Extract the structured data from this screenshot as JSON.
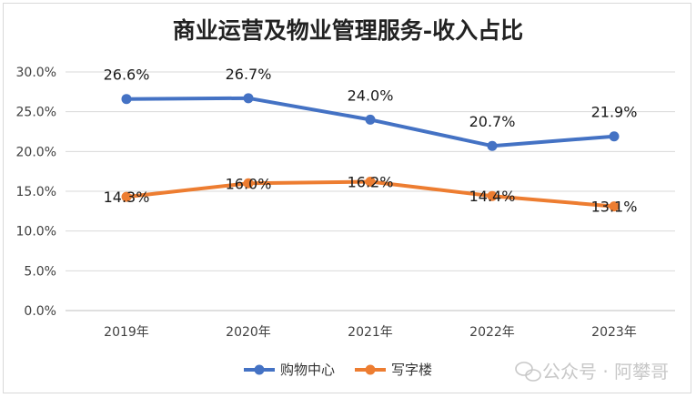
{
  "chart_data": {
    "type": "line",
    "title": "商业运营及物业管理服务-收入占比",
    "categories": [
      "2019年",
      "2020年",
      "2021年",
      "2022年",
      "2023年"
    ],
    "series": [
      {
        "name": "购物中心",
        "values": [
          26.6,
          26.7,
          24.0,
          20.7,
          21.9
        ],
        "labels": [
          "26.6%",
          "26.7%",
          "24.0%",
          "20.7%",
          "21.9%"
        ],
        "color": "#4472C4"
      },
      {
        "name": "写字楼",
        "values": [
          14.3,
          16.0,
          16.2,
          14.4,
          13.1
        ],
        "labels": [
          "14.3%",
          "16.0%",
          "16.2%",
          "14.4%",
          "13.1%"
        ],
        "color": "#ED7D31"
      }
    ],
    "ylim": [
      0,
      30
    ],
    "yticks": [
      "0.0%",
      "5.0%",
      "10.0%",
      "15.0%",
      "20.0%",
      "25.0%",
      "30.0%"
    ],
    "grid": true,
    "legend": "bottom"
  },
  "watermark": {
    "text": "公众号 · 阿攀哥",
    "icon": "wechat-icon"
  }
}
